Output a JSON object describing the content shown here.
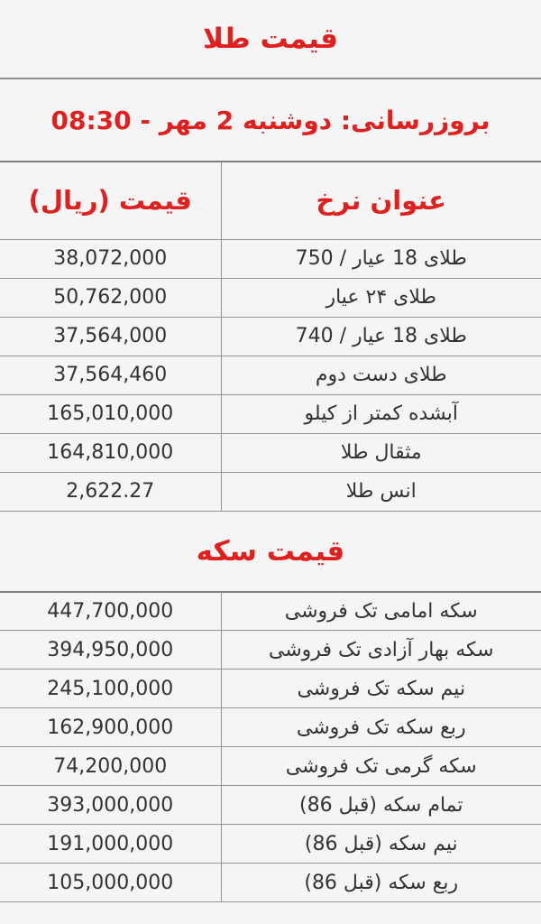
{
  "page": {
    "title": "قیمت طلا",
    "update_line": "بروزرسانی: دوشنبه 2 مهر - 08:30",
    "gold_header_title": "عنوان نرخ",
    "gold_header_price": "قیمت (ریال)",
    "coin_section_title": "قیمت سکه"
  },
  "colors": {
    "accent_red": "#e01f1f",
    "text_dark": "#333333",
    "border_gray": "#949494",
    "page_background": "#f5f5f5"
  },
  "chart_data": [
    {
      "type": "table",
      "title": "قیمت طلا",
      "columns": [
        "عنوان نرخ",
        "قیمت (ریال)"
      ],
      "rows": [
        [
          "طلای 18 عیار / 750",
          "38,072,000"
        ],
        [
          "طلای ۲۴ عیار",
          "50,762,000"
        ],
        [
          "طلای 18 عیار / 740",
          "37,564,000"
        ],
        [
          "طلای دست دوم",
          "37,564,460"
        ],
        [
          "آبشده کمتر از کیلو",
          "165,010,000"
        ],
        [
          "مثقال طلا",
          "164,810,000"
        ],
        [
          "انس طلا",
          "2,622.27"
        ]
      ]
    },
    {
      "type": "table",
      "title": "قیمت سکه",
      "columns": [],
      "rows": [
        [
          "سکه امامی تک فروشی",
          "447,700,000"
        ],
        [
          "سکه بهار آزادی تک فروشی",
          "394,950,000"
        ],
        [
          "نیم سکه تک فروشی",
          "245,100,000"
        ],
        [
          "ربع سکه تک فروشی",
          "162,900,000"
        ],
        [
          "سکه گرمی تک فروشی",
          "74,200,000"
        ],
        [
          "تمام سکه (قبل 86)",
          "393,000,000"
        ],
        [
          "نیم سکه (قبل 86)",
          "191,000,000"
        ],
        [
          "ربع سکه (قبل 86)",
          "105,000,000"
        ]
      ]
    }
  ]
}
